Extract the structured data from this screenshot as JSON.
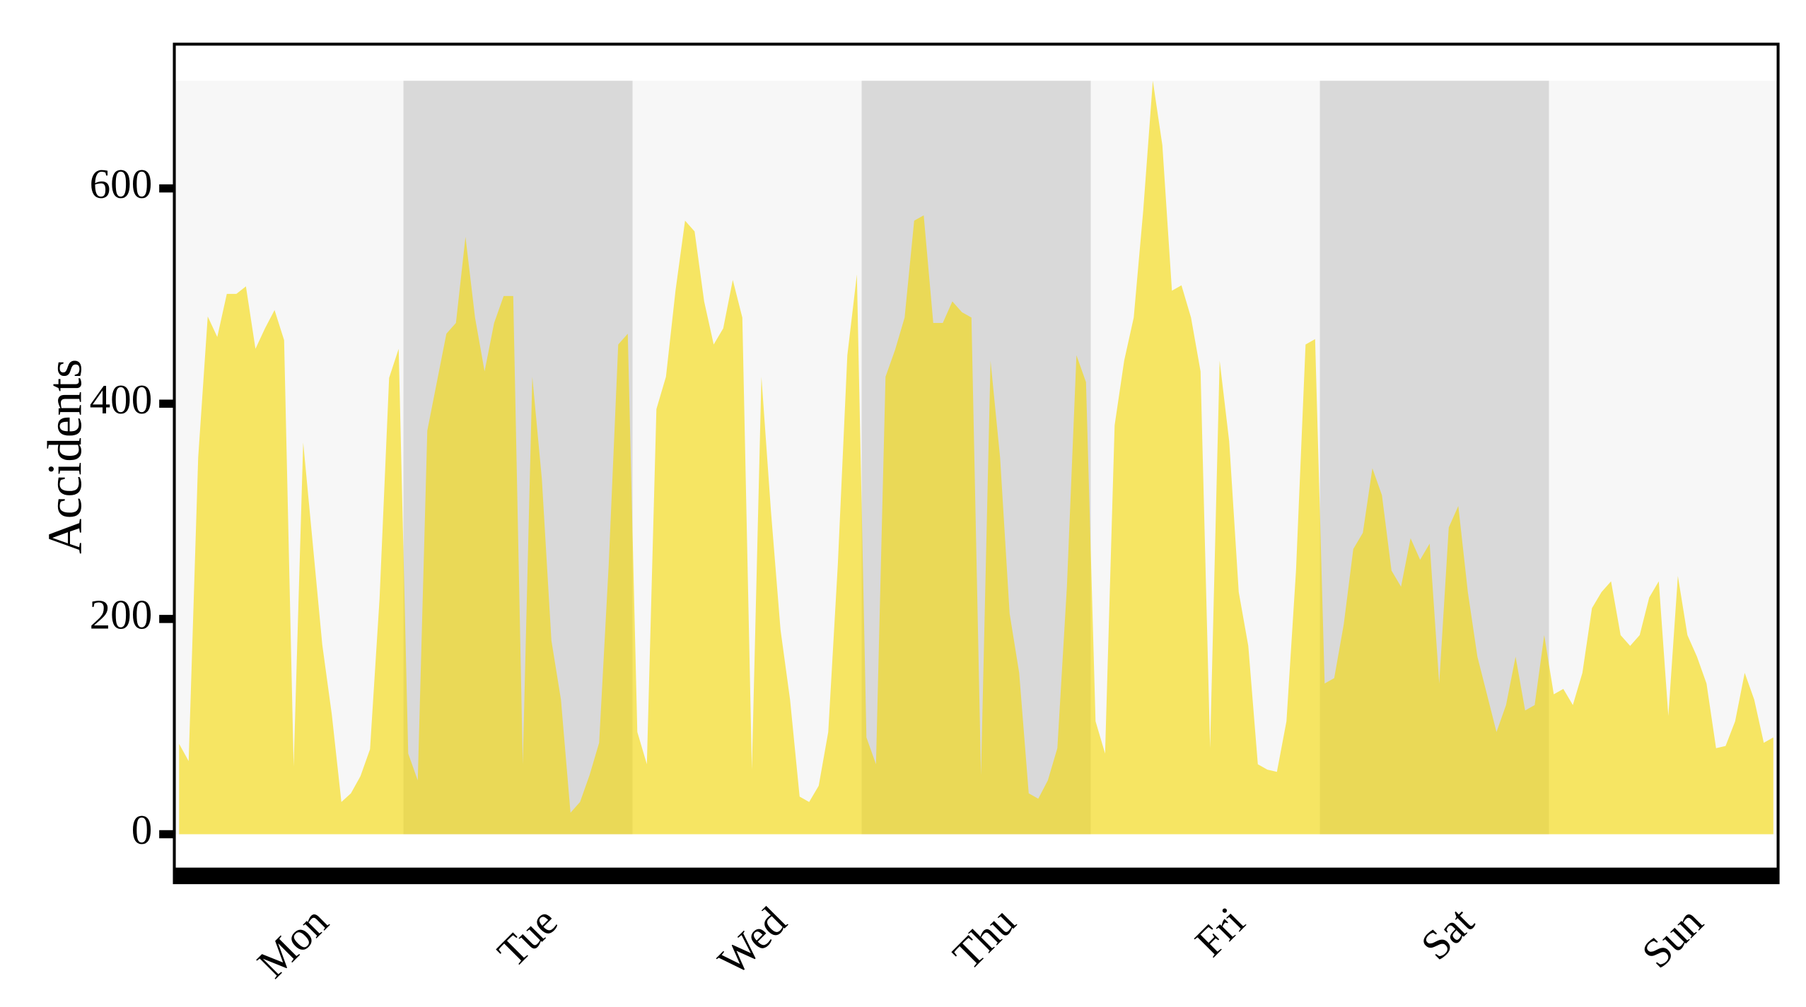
{
  "chart_data": {
    "type": "area",
    "y_label": "Accidents",
    "categories": [
      "Mon",
      "Tue",
      "Wed",
      "Thu",
      "Fri",
      "Sat",
      "Sun"
    ],
    "x": [
      0,
      1,
      2,
      3,
      4,
      5,
      6,
      7,
      8,
      9,
      10,
      11,
      12,
      13,
      14,
      15,
      16,
      17,
      18,
      19,
      20,
      21,
      22,
      23,
      24,
      25,
      26,
      27,
      28,
      29,
      30,
      31,
      32,
      33,
      34,
      35,
      36,
      37,
      38,
      39,
      40,
      41,
      42,
      43,
      44,
      45,
      46,
      47,
      48,
      49,
      50,
      51,
      52,
      53,
      54,
      55,
      56,
      57,
      58,
      59,
      60,
      61,
      62,
      63,
      64,
      65,
      66,
      67,
      68,
      69,
      70,
      71,
      72,
      73,
      74,
      75,
      76,
      77,
      78,
      79,
      80,
      81,
      82,
      83,
      84,
      85,
      86,
      87,
      88,
      89,
      90,
      91,
      92,
      93,
      94,
      95,
      96,
      97,
      98,
      99,
      100,
      101,
      102,
      103,
      104,
      105,
      106,
      107,
      108,
      109,
      110,
      111,
      112,
      113,
      114,
      115,
      116,
      117,
      118,
      119,
      120,
      121,
      122,
      123,
      124,
      125,
      126,
      127,
      128,
      129,
      130,
      131,
      132,
      133,
      134,
      135,
      136,
      137,
      138,
      139,
      140,
      141,
      142,
      143,
      144,
      145,
      146,
      147,
      148,
      149,
      150,
      151,
      152,
      153,
      154,
      155,
      156,
      157,
      158,
      159,
      160,
      161,
      162,
      163,
      164,
      165,
      166,
      167
    ],
    "series": [
      {
        "name": "Accidents",
        "color": "#f5d800",
        "values": [
          84,
          68,
          350,
          481,
          462,
          502,
          502,
          509,
          451,
          470,
          487,
          459,
          63,
          364,
          270,
          176,
          111,
          30,
          38,
          54,
          79,
          219,
          424,
          451,
          75,
          50,
          375,
          420,
          465,
          475,
          555,
          480,
          430,
          475,
          500,
          500,
          65,
          425,
          330,
          180,
          125,
          20,
          30,
          55,
          85,
          250,
          455,
          465,
          95,
          65,
          395,
          425,
          505,
          570,
          560,
          495,
          455,
          470,
          515,
          480,
          60,
          425,
          300,
          190,
          125,
          35,
          30,
          45,
          95,
          250,
          445,
          520,
          90,
          65,
          425,
          450,
          480,
          570,
          575,
          475,
          475,
          495,
          485,
          480,
          55,
          440,
          350,
          205,
          150,
          38,
          33,
          50,
          80,
          230,
          445,
          420,
          105,
          75,
          380,
          440,
          480,
          580,
          700,
          640,
          505,
          510,
          480,
          430,
          80,
          440,
          365,
          225,
          175,
          65,
          60,
          58,
          105,
          245,
          455,
          460,
          140,
          145,
          195,
          265,
          280,
          340,
          315,
          245,
          230,
          275,
          255,
          270,
          140,
          285,
          305,
          225,
          165,
          130,
          95,
          120,
          165,
          115,
          120,
          185,
          130,
          135,
          120,
          150,
          210,
          225,
          235,
          185,
          175,
          185,
          220,
          235,
          110,
          240,
          185,
          165,
          140,
          80,
          82,
          105,
          150,
          125,
          85,
          90
        ]
      }
    ],
    "xlim": [
      -0.5,
      167.5
    ],
    "ylim": [
      -45,
      734
    ],
    "yticks": [
      0,
      200,
      400,
      600
    ]
  }
}
